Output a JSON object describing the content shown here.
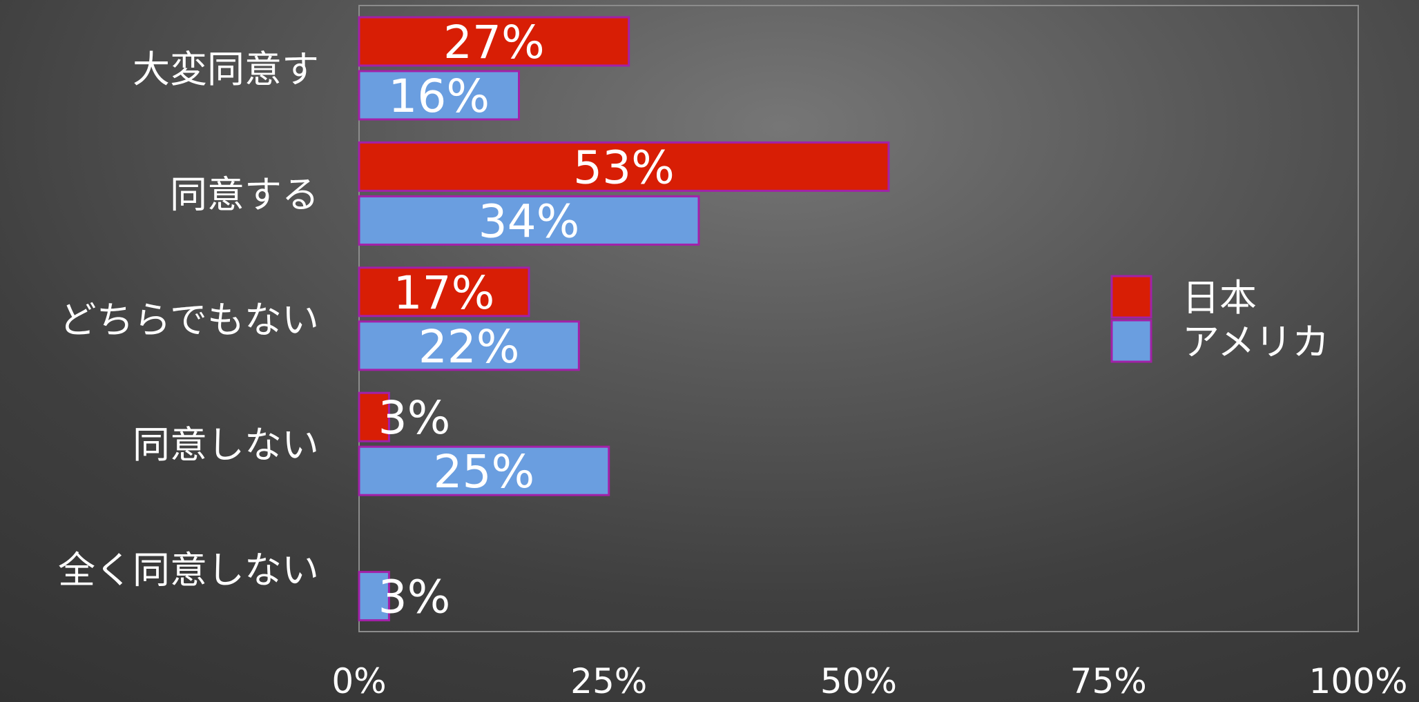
{
  "chart_data": {
    "type": "bar",
    "orientation": "horizontal",
    "categories": [
      "大変同意す",
      "同意する",
      "どちらでもない",
      "同意しない",
      "全く同意しない"
    ],
    "series": [
      {
        "name": "日本",
        "values": [
          27,
          53,
          17,
          3,
          0
        ],
        "labels": [
          "27%",
          "53%",
          "17%",
          "3%",
          ""
        ],
        "color": "#d81e05"
      },
      {
        "name": "アメリカ",
        "values": [
          16,
          34,
          22,
          25,
          3
        ],
        "labels": [
          "16%",
          "34%",
          "22%",
          "25%",
          "3%"
        ],
        "color": "#6a9ee0"
      }
    ],
    "xlim": [
      0,
      100
    ],
    "xticks": [
      0,
      25,
      50,
      75,
      100
    ],
    "xtick_labels": [
      "0%",
      "25%",
      "50%",
      "75%",
      "100%"
    ],
    "grid": false,
    "legend_position": "right",
    "bar_outline_color": "#a321a8",
    "plot_border_color": "#8c8c8c"
  }
}
